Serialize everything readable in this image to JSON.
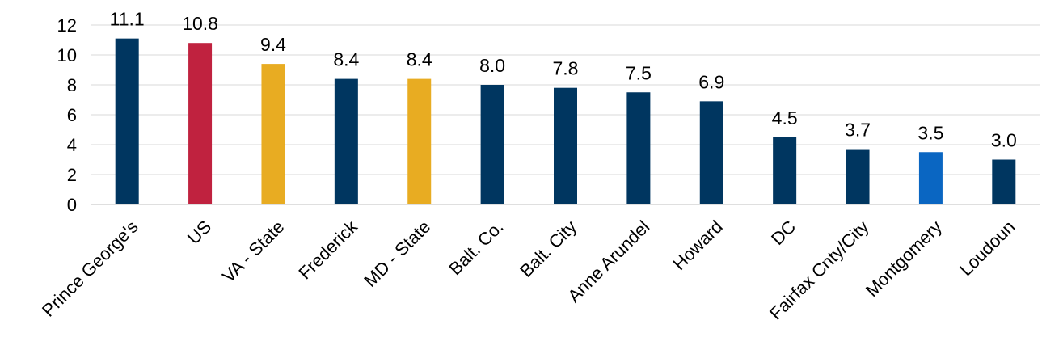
{
  "chart_data": {
    "type": "bar",
    "title": "",
    "xlabel": "",
    "ylabel": "",
    "ylim": [
      0,
      12
    ],
    "yticks": [
      0,
      2,
      4,
      6,
      8,
      10,
      12
    ],
    "grid": true,
    "categories": [
      "Prince George's",
      "US",
      "VA - State",
      "Frederick",
      "MD - State",
      "Balt. Co.",
      "Balt. City",
      "Anne Arundel",
      "Howard",
      "DC",
      "Fairfax Cnty/City",
      "Montgomery",
      "Loudoun"
    ],
    "values": [
      11.1,
      10.8,
      9.4,
      8.4,
      8.4,
      8.0,
      7.8,
      7.5,
      6.9,
      4.5,
      3.7,
      3.5,
      3.0
    ],
    "value_labels": [
      "11.1",
      "10.8",
      "9.4",
      "8.4",
      "8.4",
      "8.0",
      "7.8",
      "7.5",
      "6.9",
      "4.5",
      "3.7",
      "3.5",
      "3.0"
    ],
    "bar_colors": [
      "#003660",
      "#c0223f",
      "#e8ac22",
      "#003660",
      "#e8ac22",
      "#003660",
      "#003660",
      "#003660",
      "#003660",
      "#003660",
      "#003660",
      "#0a66c2",
      "#003660"
    ]
  }
}
